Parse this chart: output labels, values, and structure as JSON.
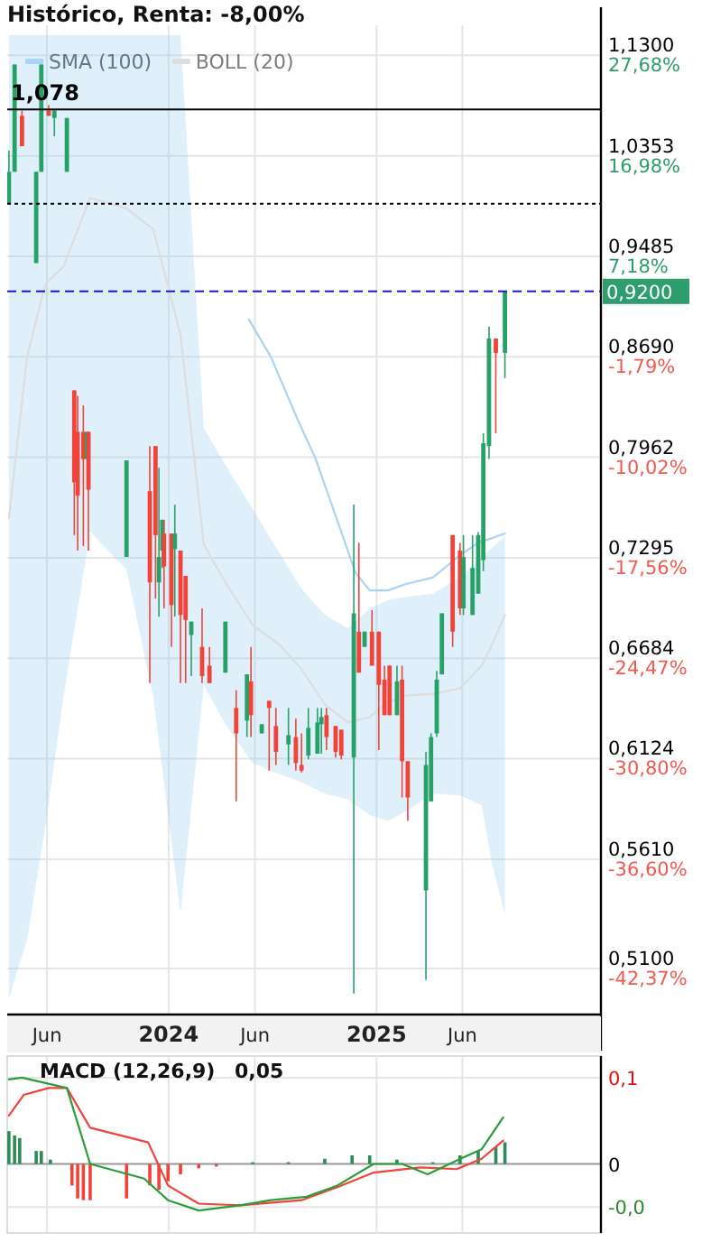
{
  "chart_data": [
    {
      "type": "candlestick",
      "title": "Histórico, Renta: -8,00%",
      "log": "y",
      "grid": true,
      "legend": "top left",
      "xlim": [
        "2023-03-23",
        "2026-01-31"
      ],
      "xticks": [
        {
          "value": "2023-06-01",
          "label": "Jun"
        },
        {
          "value": "2024-01-01",
          "label": "2024"
        },
        {
          "value": "2024-06-01",
          "label": "Jun"
        },
        {
          "value": "2025-01-01",
          "label": "2025"
        },
        {
          "value": "2025-06-01",
          "label": "Jun"
        }
      ],
      "ylim": [
        0.49,
        1.16
      ],
      "yticks": [
        {
          "value": 1.13,
          "label": "1,1300"
        },
        {
          "value": 1.0353,
          "label": "1,0353"
        },
        {
          "value": 0.9485,
          "label": "0,9485"
        },
        {
          "value": 0.869,
          "label": "0,8690"
        },
        {
          "value": 0.7962,
          "label": "0,7962"
        },
        {
          "value": 0.7295,
          "label": "0,7295"
        },
        {
          "value": 0.6684,
          "label": "0,6684"
        },
        {
          "value": 0.6124,
          "label": "0,6124"
        },
        {
          "value": 0.561,
          "label": "0,5610"
        },
        {
          "value": 0.51,
          "label": "0,5100"
        }
      ],
      "annotations": [
        "27,68%",
        "16,98%",
        "7,18%",
        "-1,79%",
        "-10,02%",
        "-17,56%",
        "-24,47%",
        "-30,80%",
        "-36,60%",
        "-42,37%"
      ],
      "ref_lines": [
        {
          "axis": "y",
          "value": 1.078,
          "label": "1,078",
          "color": "#000000",
          "line_style": "solid"
        },
        {
          "axis": "y",
          "value": 0.993,
          "color": "#000000",
          "line_style": "dotted"
        },
        {
          "axis": "y",
          "value": 0.92,
          "label": "0,9200",
          "color": "#1a1acc",
          "line_style": "dashed"
        }
      ],
      "series": [
        {
          "x": [
            "2023-03-26",
            "2023-04-05",
            "2023-04-18",
            "2023-05-13",
            "2023-05-22",
            "2023-06-04",
            "2023-06-14",
            "2023-07-06",
            "2023-07-19",
            "2023-07-25",
            "2023-08-04",
            "2023-08-10",
            "2023-08-13",
            "2023-10-19",
            "2023-11-29",
            "2023-12-09",
            "2023-12-15",
            "2023-12-21",
            "2023-12-24",
            "2024-01-06",
            "2024-01-12",
            "2024-01-22",
            "2024-01-31",
            "2024-02-10",
            "2024-02-29",
            "2024-03-13",
            "2024-04-10",
            "2024-04-29",
            "2024-05-18",
            "2024-05-25",
            "2024-06-13",
            "2024-06-26",
            "2024-07-08",
            "2024-07-30",
            "2024-08-12",
            "2024-08-22",
            "2024-09-03",
            "2024-09-19",
            "2024-09-26",
            "2024-10-05",
            "2024-10-21",
            "2024-10-31",
            "2024-11-22",
            "2024-12-01",
            "2024-12-11",
            "2024-12-24",
            "2025-01-05",
            "2025-01-15",
            "2025-01-24",
            "2025-02-06",
            "2025-02-15",
            "2025-02-25",
            "2025-03-29",
            "2025-04-07",
            "2025-04-17",
            "2025-04-26",
            "2025-05-15",
            "2025-05-28",
            "2025-06-03",
            "2025-06-19",
            "2025-06-29",
            "2025-07-08",
            "2025-07-18",
            "2025-07-30",
            "2025-08-15"
          ],
          "ohlc": [
            [
              0.993,
              1.04,
              0.993,
              1.021
            ],
            [
              1.021,
              1.121,
              1.021,
              1.121
            ],
            [
              1.072,
              1.077,
              1.044,
              1.044
            ],
            [
              0.943,
              1.021,
              0.943,
              1.021
            ],
            [
              1.021,
              1.121,
              1.021,
              1.121
            ],
            [
              1.077,
              1.082,
              1.072,
              1.072
            ],
            [
              1.07,
              1.077,
              1.053,
              1.077
            ],
            [
              1.021,
              1.07,
              1.021,
              1.07
            ],
            [
              0.844,
              0.844,
              0.744,
              0.779
            ],
            [
              0.814,
              0.84,
              0.734,
              0.77
            ],
            [
              0.814,
              0.833,
              0.737,
              0.795
            ],
            [
              0.795,
              0.814,
              0.795,
              0.814
            ],
            [
              0.814,
              0.814,
              0.734,
              0.774
            ],
            [
              0.73,
              0.794,
              0.73,
              0.794
            ],
            [
              0.773,
              0.804,
              0.654,
              0.714
            ],
            [
              0.804,
              0.804,
              0.704,
              0.744
            ],
            [
              0.714,
              0.789,
              0.693,
              0.73
            ],
            [
              0.734,
              0.754,
              0.723,
              0.754
            ],
            [
              0.745,
              0.754,
              0.698,
              0.724
            ],
            [
              0.745,
              0.745,
              0.675,
              0.7
            ],
            [
              0.735,
              0.764,
              0.693,
              0.745
            ],
            [
              0.734,
              0.734,
              0.654,
              0.694
            ],
            [
              0.718,
              0.718,
              0.654,
              0.691
            ],
            [
              0.682,
              0.69,
              0.658,
              0.69
            ],
            [
              0.675,
              0.698,
              0.654,
              0.658
            ],
            [
              0.664,
              0.675,
              0.654,
              0.654
            ],
            [
              0.66,
              0.69,
              0.66,
              0.69
            ],
            [
              0.64,
              0.65,
              0.59,
              0.626
            ],
            [
              0.633,
              0.659,
              0.624,
              0.659
            ],
            [
              0.655,
              0.675,
              0.624,
              0.636
            ],
            [
              0.626,
              0.631,
              0.626,
              0.631
            ],
            [
              0.644,
              0.644,
              0.606,
              0.64
            ],
            [
              0.63,
              0.64,
              0.609,
              0.616
            ],
            [
              0.62,
              0.64,
              0.609,
              0.625
            ],
            [
              0.624,
              0.634,
              0.606,
              0.61
            ],
            [
              0.609,
              0.626,
              0.605,
              0.606
            ],
            [
              0.614,
              0.64,
              0.612,
              0.629
            ],
            [
              0.615,
              0.64,
              0.615,
              0.632
            ],
            [
              0.631,
              0.64,
              0.615,
              0.635
            ],
            [
              0.636,
              0.64,
              0.617,
              0.624
            ],
            [
              0.63,
              0.63,
              0.613,
              0.616
            ],
            [
              0.628,
              0.628,
              0.612,
              0.614
            ],
            [
              0.613,
              0.764,
              0.499,
              0.695
            ],
            [
              0.684,
              0.739,
              0.66,
              0.66
            ],
            [
              0.675,
              0.684,
              0.675,
              0.684
            ],
            [
              0.684,
              0.697,
              0.664,
              0.664
            ],
            [
              0.684,
              0.684,
              0.617,
              0.653
            ],
            [
              0.656,
              0.664,
              0.636,
              0.636
            ],
            [
              0.664,
              0.664,
              0.636,
              0.636
            ],
            [
              0.636,
              0.664,
              0.636,
              0.655
            ],
            [
              0.656,
              0.664,
              0.592,
              0.611
            ],
            [
              0.611,
              0.611,
              0.58,
              0.592
            ],
            [
              0.546,
              0.616,
              0.505,
              0.609
            ],
            [
              0.59,
              0.626,
              0.59,
              0.624
            ],
            [
              0.626,
              0.661,
              0.624,
              0.656
            ],
            [
              0.659,
              0.695,
              0.659,
              0.695
            ],
            [
              0.744,
              0.744,
              0.675,
              0.684
            ],
            [
              0.734,
              0.739,
              0.694,
              0.698
            ],
            [
              0.698,
              0.744,
              0.694,
              0.73
            ],
            [
              0.694,
              0.744,
              0.694,
              0.723
            ],
            [
              0.707,
              0.746,
              0.707,
              0.744
            ],
            [
              0.728,
              0.813,
              0.721,
              0.806
            ],
            [
              0.804,
              0.892,
              0.795,
              0.883
            ],
            [
              0.883,
              0.883,
              0.813,
              0.872
            ],
            [
              0.872,
              0.92,
              0.853,
              0.92
            ]
          ],
          "colors": [
            "#26a269",
            "#26a269",
            "#f0433a",
            "#26a269",
            "#26a269",
            "#f0433a",
            "#26a269",
            "#26a269",
            "#f0433a",
            "#f0433a",
            "#f0433a",
            "#26a269",
            "#f0433a",
            "#26a269",
            "#f0433a",
            "#f0433a",
            "#26a269",
            "#26a269",
            "#f0433a",
            "#f0433a",
            "#26a269",
            "#f0433a",
            "#f0433a",
            "#26a269",
            "#f0433a",
            "#f0433a",
            "#26a269",
            "#f0433a",
            "#26a269",
            "#f0433a",
            "#26a269",
            "#f0433a",
            "#f0433a",
            "#26a269",
            "#f0433a",
            "#f0433a",
            "#26a269",
            "#26a269",
            "#26a269",
            "#f0433a",
            "#f0433a",
            "#f0433a",
            "#26a269",
            "#f0433a",
            "#26a269",
            "#f0433a",
            "#f0433a",
            "#f0433a",
            "#f0433a",
            "#26a269",
            "#f0433a",
            "#f0433a",
            "#26a269",
            "#26a269",
            "#26a269",
            "#26a269",
            "#f0433a",
            "#f0433a",
            "#26a269",
            "#26a269",
            "#26a269",
            "#26a269",
            "#26a269",
            "#f0433a",
            "#26a269"
          ]
        },
        {
          "type": "line",
          "name": "SMA (100)",
          "color": "#a9d4f5",
          "x": [
            "2024-05-21",
            "2024-06-29",
            "2024-08-15",
            "2024-09-16",
            "2024-11-03",
            "2024-11-25",
            "2024-12-20",
            "2025-01-21",
            "2025-02-22",
            "2025-04-10",
            "2025-05-28",
            "2025-06-29",
            "2025-08-15"
          ],
          "values": [
            0.898,
            0.869,
            0.823,
            0.795,
            0.743,
            0.72,
            0.709,
            0.709,
            0.713,
            0.717,
            0.731,
            0.739,
            0.745
          ]
        },
        {
          "type": "line",
          "name": "BOLL (20)",
          "color": "#dddddd",
          "x": [
            "2023-03-26",
            "2023-04-27",
            "2023-05-29",
            "2023-06-30",
            "2023-08-16",
            "2023-10-19",
            "2023-12-05",
            "2024-01-22",
            "2024-03-03",
            "2024-04-10",
            "2024-05-28",
            "2024-07-15",
            "2024-08-22",
            "2024-10-02",
            "2024-11-12",
            "2024-12-20",
            "2025-01-21",
            "2025-02-22",
            "2025-04-10",
            "2025-05-28",
            "2025-07-05",
            "2025-07-24",
            "2025-08-15"
          ],
          "values": [
            0.755,
            0.869,
            0.926,
            0.94,
            0.998,
            0.989,
            0.971,
            0.886,
            0.738,
            0.714,
            0.688,
            0.676,
            0.662,
            0.642,
            0.632,
            0.635,
            0.643,
            0.647,
            0.648,
            0.651,
            0.664,
            0.677,
            0.694
          ],
          "lower": [
            0.497,
            0.523,
            0.577,
            0.646,
            0.746,
            0.722,
            0.646,
            0.535,
            0.653,
            0.631,
            0.61,
            0.604,
            0.6,
            0.594,
            0.591,
            0.583,
            0.58,
            0.585,
            0.594,
            0.593,
            0.588,
            0.558,
            0.535
          ],
          "upper": [
            1.15,
            1.15,
            1.15,
            1.15,
            1.15,
            1.15,
            1.15,
            1.15,
            0.817,
            0.791,
            0.761,
            0.732,
            0.71,
            0.694,
            0.686,
            0.698,
            0.703,
            0.705,
            0.707,
            0.717,
            0.73,
            0.736,
            0.743
          ]
        }
      ]
    },
    {
      "type": "line",
      "title": "MACD (12,26,9)",
      "annotations": [
        "0,05"
      ],
      "grid": true,
      "tick_labels": "y",
      "xlim": [
        "2023-03-23",
        "2026-01-31"
      ],
      "xticks": [
        {
          "value": "2023-06-01",
          "label": null
        },
        {
          "value": "2024-01-01",
          "label": null
        },
        {
          "value": "2024-06-01",
          "label": null
        },
        {
          "value": "2025-01-01",
          "label": null
        },
        {
          "value": "2025-06-01",
          "label": null
        }
      ],
      "ylim": [
        -0.08,
        0.125
      ],
      "yticks": [
        {
          "value": 0.1,
          "label": "0,1"
        },
        {
          "value": 0,
          "label": "0"
        },
        {
          "value": -0.05,
          "label": "-0,0"
        }
      ],
      "series": [
        {
          "type": "bar",
          "x": [
            "2023-03-26",
            "2023-04-05",
            "2023-04-14",
            "2023-05-13",
            "2023-05-22",
            "2023-06-07",
            "2023-07-15",
            "2023-07-25",
            "2023-08-04",
            "2023-08-16",
            "2023-10-19",
            "2023-11-29",
            "2023-12-15",
            "2023-12-31",
            "2024-01-22",
            "2024-02-23",
            "2024-03-25",
            "2024-05-28",
            "2024-07-30",
            "2024-10-02",
            "2024-11-19",
            "2024-12-20",
            "2025-02-06",
            "2025-04-10",
            "2025-05-28",
            "2025-06-29",
            "2025-07-30",
            "2025-08-15"
          ],
          "values": [
            0.038,
            0.033,
            0.03,
            0.015,
            0.015,
            0.005,
            -0.025,
            -0.04,
            -0.042,
            -0.042,
            -0.04,
            -0.025,
            -0.03,
            -0.02,
            -0.012,
            -0.005,
            -0.003,
            0.002,
            0.002,
            0.006,
            0.01,
            0.01,
            0.005,
            0.002,
            0.01,
            0.015,
            0.02,
            0.025
          ],
          "colors": [
            "#2e8b57",
            "#2e8b57",
            "#2e8b57",
            "#2e8b57",
            "#2e8b57",
            "#2e8b57",
            "#f0433a",
            "#f0433a",
            "#f0433a",
            "#f0433a",
            "#f0433a",
            "#f0433a",
            "#f0433a",
            "#f0433a",
            "#f0433a",
            "#f0433a",
            "#f0433a",
            "#2e8b57",
            "#2e8b57",
            "#2e8b57",
            "#2e8b57",
            "#2e8b57",
            "#2e8b57",
            "#2e8b57",
            "#2e8b57",
            "#2e8b57",
            "#2e8b57",
            "#2e8b57"
          ]
        },
        {
          "color": "#f0433a",
          "x": [
            "2023-03-26",
            "2023-04-21",
            "2023-06-04",
            "2023-07-06",
            "2023-08-16",
            "2023-11-26",
            "2023-12-31",
            "2024-02-23",
            "2024-05-06",
            "2024-08-22",
            "2024-10-24",
            "2024-12-27",
            "2025-03-19",
            "2025-05-22",
            "2025-07-05",
            "2025-08-12"
          ],
          "values": [
            0.056,
            0.08,
            0.088,
            0.088,
            0.042,
            0.025,
            -0.025,
            -0.046,
            -0.048,
            -0.042,
            -0.027,
            -0.01,
            -0.004,
            -0.006,
            0.006,
            0.027
          ]
        },
        {
          "color": "#2a9d3a",
          "x": [
            "2023-03-26",
            "2023-04-18",
            "2023-07-06",
            "2023-08-16",
            "2023-11-19",
            "2023-12-31",
            "2024-02-23",
            "2024-05-06",
            "2024-06-29",
            "2024-08-31",
            "2024-10-24",
            "2024-12-27",
            "2025-02-15",
            "2025-04-01",
            "2025-05-22",
            "2025-07-05",
            "2025-08-12"
          ],
          "values": [
            0.098,
            0.1,
            0.088,
            0,
            -0.017,
            -0.042,
            -0.054,
            -0.048,
            -0.042,
            -0.038,
            -0.025,
            0,
            0,
            -0.012,
            0.004,
            0.017,
            0.054
          ]
        }
      ]
    }
  ]
}
